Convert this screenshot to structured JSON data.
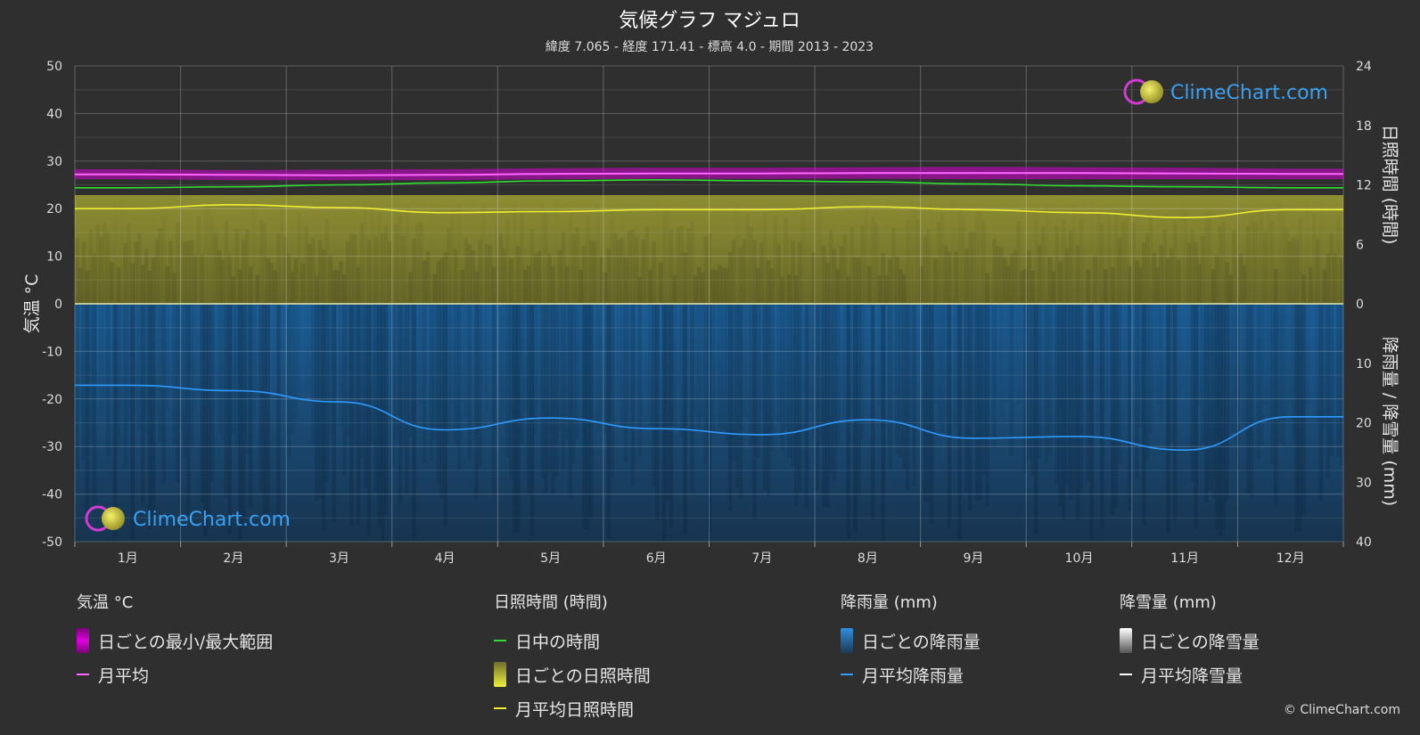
{
  "title": "気候グラフ マジュロ",
  "subtitle": "緯度 7.065 - 経度 171.41 - 標高 4.0 - 期間 2013 - 2023",
  "watermark": "ClimeChart.com",
  "copyright": "© ClimeChart.com",
  "colors": {
    "background": "#2f2f2f",
    "temp_range": "#d300d3",
    "temp_mean": "#ff66ff",
    "daylight": "#33dd33",
    "sunshine_fill": "#8a8a2e",
    "sunshine_mean": "#eeee33",
    "rain_fill": "#1f5a8f",
    "rain_mean": "#2f9bff",
    "snow_mean": "#ffffff"
  },
  "chart_data": {
    "type": "line",
    "categories": [
      "1月",
      "2月",
      "3月",
      "4月",
      "5月",
      "6月",
      "7月",
      "8月",
      "9月",
      "10月",
      "11月",
      "12月"
    ],
    "left_axis": {
      "label": "気温 °C",
      "min": -50,
      "max": 50,
      "ticks": [
        50,
        40,
        30,
        20,
        10,
        0,
        -10,
        -20,
        -30,
        -40,
        -50
      ]
    },
    "right_axis_top": {
      "label": "日照時間 (時間)",
      "min": 0,
      "max": 24,
      "ticks": [
        24,
        18,
        12,
        6,
        0
      ]
    },
    "right_axis_bottom": {
      "label": "降雨量 / 降雪量 (mm)",
      "min": 0,
      "max": 40,
      "ticks": [
        0,
        10,
        20,
        30,
        40
      ]
    },
    "series": [
      {
        "name": "日ごとの最小/最大範囲",
        "kind": "band",
        "axis": "left",
        "low": [
          26.2,
          26.0,
          26.0,
          26.0,
          26.2,
          26.3,
          26.3,
          26.3,
          26.2,
          26.2,
          26.2,
          26.2
        ],
        "high": [
          28.3,
          28.1,
          28.2,
          28.3,
          28.5,
          28.6,
          28.6,
          28.7,
          28.8,
          28.7,
          28.6,
          28.4
        ]
      },
      {
        "name": "月平均",
        "kind": "line",
        "axis": "left",
        "values": [
          27.2,
          27.1,
          27.0,
          27.1,
          27.3,
          27.4,
          27.4,
          27.5,
          27.5,
          27.5,
          27.4,
          27.3
        ]
      },
      {
        "name": "日中の時間",
        "kind": "line",
        "axis": "right_top",
        "values": [
          11.7,
          11.8,
          12.0,
          12.2,
          12.4,
          12.5,
          12.4,
          12.3,
          12.1,
          11.9,
          11.8,
          11.7
        ]
      },
      {
        "name": "日ごとの日照時間",
        "kind": "bar_area",
        "axis": "right_top",
        "values": [
          10.8,
          10.9,
          10.9,
          10.9,
          10.9,
          10.9,
          10.9,
          10.9,
          10.9,
          10.8,
          10.8,
          10.8
        ]
      },
      {
        "name": "月平均日照時間",
        "kind": "line",
        "axis": "right_top",
        "values": [
          9.6,
          10.0,
          9.7,
          9.2,
          9.3,
          9.5,
          9.5,
          9.8,
          9.5,
          9.2,
          8.7,
          9.5
        ]
      },
      {
        "name": "日ごとの降雨量",
        "kind": "bar_area",
        "axis": "right_bottom",
        "values": [
          40,
          40,
          40,
          40,
          40,
          40,
          40,
          40,
          40,
          40,
          40,
          40
        ]
      },
      {
        "name": "月平均降雨量",
        "kind": "line",
        "axis": "right_bottom",
        "values": [
          13.7,
          14.6,
          16.5,
          21.2,
          19.2,
          21.0,
          22.0,
          19.5,
          22.6,
          22.3,
          24.6,
          19.0
        ]
      }
    ]
  },
  "legend": {
    "groups": [
      {
        "title": "気温 °C",
        "items": [
          {
            "label": "日ごとの最小/最大範囲",
            "swatch": "box",
            "color": "#d300d3"
          },
          {
            "label": "月平均",
            "swatch": "line",
            "color": "#ff66ff"
          }
        ]
      },
      {
        "title": "日照時間 (時間)",
        "items": [
          {
            "label": "日中の時間",
            "swatch": "line",
            "color": "#33dd33"
          },
          {
            "label": "日ごとの日照時間",
            "swatch": "box",
            "color": "#c8c832"
          },
          {
            "label": "月平均日照時間",
            "swatch": "line",
            "color": "#eeee33"
          }
        ]
      },
      {
        "title": "降雨量 (mm)",
        "items": [
          {
            "label": "日ごとの降雨量",
            "swatch": "box",
            "color": "#1f7fd0"
          },
          {
            "label": "月平均降雨量",
            "swatch": "line",
            "color": "#2f9bff"
          }
        ]
      },
      {
        "title": "降雪量 (mm)",
        "items": [
          {
            "label": "日ごとの降雪量",
            "swatch": "box",
            "color": "#dddddd"
          },
          {
            "label": "月平均降雪量",
            "swatch": "line",
            "color": "#ffffff"
          }
        ]
      }
    ]
  }
}
